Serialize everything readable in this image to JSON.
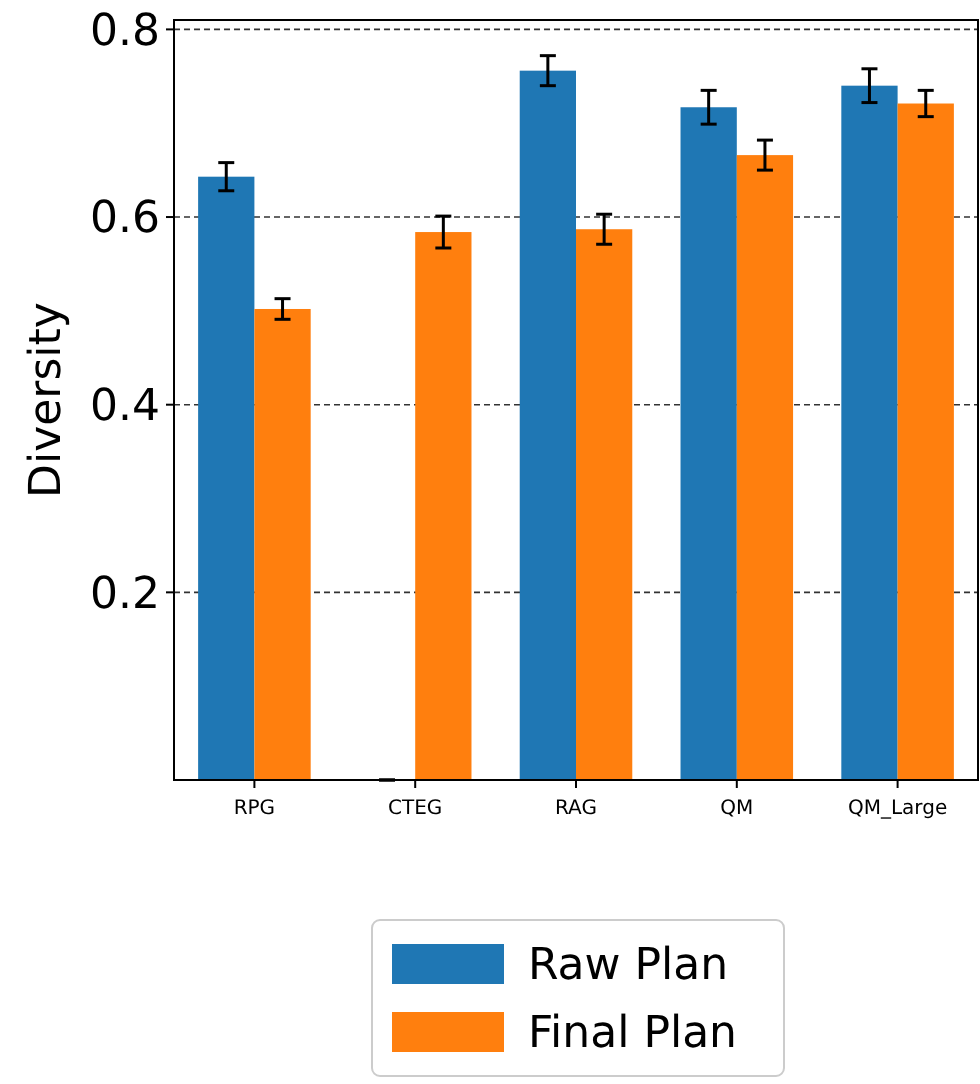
{
  "chart_data": {
    "type": "bar",
    "ylabel": "Diversity",
    "categories": [
      "RPG",
      "CTEG",
      "RAG",
      "QM",
      "QM_Large"
    ],
    "series": [
      {
        "name": "Raw Plan",
        "color": "#1f77b4",
        "values": [
          0.643,
          0,
          0.756,
          0.717,
          0.74
        ],
        "errors": [
          0.015,
          0,
          0.016,
          0.018,
          0.018
        ]
      },
      {
        "name": "Final Plan",
        "color": "#ff7f0e",
        "values": [
          0.502,
          0.584,
          0.587,
          0.666,
          0.721
        ],
        "errors": [
          0.011,
          0.017,
          0.016,
          0.016,
          0.014
        ]
      }
    ],
    "ylim": [
      0,
      0.81
    ],
    "yticks": [
      0.2,
      0.4,
      0.6,
      0.8
    ],
    "grid": "y",
    "legend": "bottom"
  }
}
